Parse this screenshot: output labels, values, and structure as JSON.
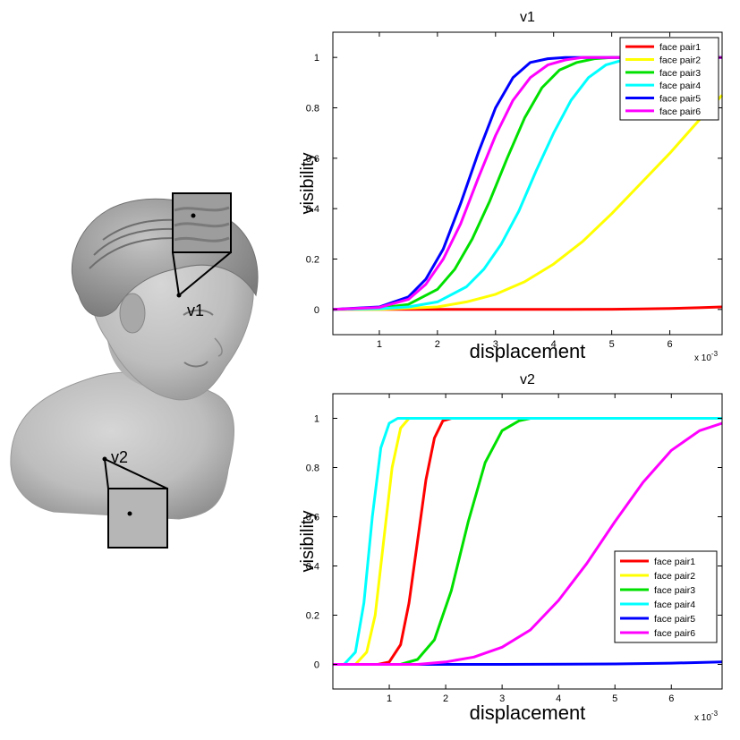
{
  "bust": {
    "label_v1": "v1",
    "label_v2": "v2",
    "surface_color": "#bcbcbc"
  },
  "colors": {
    "face pair1": "#ff0000",
    "face pair2": "#ffff00",
    "face pair3": "#00e000",
    "face pair4": "#00ffff",
    "face pair5": "#0000ff",
    "face pair6": "#ff00ff"
  },
  "chart_data": [
    {
      "type": "line",
      "title": "v1",
      "xlabel": "displacement",
      "ylabel": "visibility",
      "x_multiplier": "x 10^-3",
      "x_multiplier_base": "x 10",
      "x_multiplier_exp": "-3",
      "xlim": [
        0.2,
        6.9
      ],
      "ylim": [
        -0.1,
        1.1
      ],
      "xticks": [
        1,
        2,
        3,
        4,
        5,
        6
      ],
      "yticks": [
        0,
        0.2,
        0.4,
        0.6,
        0.8,
        1
      ],
      "legend_position": "top-right",
      "grid": false,
      "series": [
        {
          "name": "face pair1",
          "x": [
            0.2,
            1.0,
            2.0,
            3.0,
            4.0,
            5.0,
            5.5,
            6.0,
            6.5,
            6.9
          ],
          "y": [
            0,
            0,
            0,
            0,
            0,
            0.001,
            0.002,
            0.004,
            0.007,
            0.01
          ]
        },
        {
          "name": "face pair2",
          "x": [
            0.2,
            1.0,
            2.0,
            2.5,
            3.0,
            3.5,
            4.0,
            4.5,
            5.0,
            5.5,
            6.0,
            6.5,
            6.9
          ],
          "y": [
            0,
            0,
            0.01,
            0.03,
            0.06,
            0.11,
            0.18,
            0.27,
            0.38,
            0.5,
            0.62,
            0.75,
            0.85
          ]
        },
        {
          "name": "face pair3",
          "x": [
            0.2,
            1.0,
            1.5,
            2.0,
            2.3,
            2.6,
            2.9,
            3.2,
            3.5,
            3.8,
            4.1,
            4.4,
            4.7,
            5.0,
            6.9
          ],
          "y": [
            0,
            0.005,
            0.02,
            0.08,
            0.16,
            0.28,
            0.43,
            0.6,
            0.76,
            0.88,
            0.95,
            0.98,
            0.995,
            1,
            1
          ]
        },
        {
          "name": "face pair4",
          "x": [
            0.2,
            1.0,
            1.5,
            2.0,
            2.5,
            2.8,
            3.1,
            3.4,
            3.7,
            4.0,
            4.3,
            4.6,
            4.9,
            5.2,
            5.5,
            6.9
          ],
          "y": [
            0,
            0.003,
            0.01,
            0.03,
            0.09,
            0.16,
            0.26,
            0.39,
            0.55,
            0.7,
            0.83,
            0.92,
            0.97,
            0.99,
            1,
            1
          ]
        },
        {
          "name": "face pair5",
          "x": [
            0.2,
            1.0,
            1.5,
            1.8,
            2.1,
            2.4,
            2.7,
            3.0,
            3.3,
            3.6,
            3.9,
            4.2,
            4.5,
            6.9
          ],
          "y": [
            0,
            0.01,
            0.05,
            0.12,
            0.24,
            0.42,
            0.62,
            0.8,
            0.92,
            0.98,
            0.995,
            1,
            1,
            1
          ]
        },
        {
          "name": "face pair6",
          "x": [
            0.2,
            1.0,
            1.5,
            1.8,
            2.1,
            2.4,
            2.7,
            3.0,
            3.3,
            3.6,
            3.9,
            4.2,
            4.5,
            4.8,
            6.9
          ],
          "y": [
            0,
            0.008,
            0.04,
            0.1,
            0.2,
            0.34,
            0.52,
            0.69,
            0.83,
            0.92,
            0.97,
            0.99,
            1,
            1,
            1
          ]
        }
      ]
    },
    {
      "type": "line",
      "title": "v2",
      "xlabel": "displacement",
      "ylabel": "visibility",
      "x_multiplier": "x 10^-3",
      "x_multiplier_base": "x 10",
      "x_multiplier_exp": "-3",
      "xlim": [
        0.0,
        6.9
      ],
      "ylim": [
        -0.1,
        1.1
      ],
      "xticks": [
        1,
        2,
        3,
        4,
        5,
        6
      ],
      "yticks": [
        0,
        0.2,
        0.4,
        0.6,
        0.8,
        1
      ],
      "legend_position": "bottom-right",
      "grid": false,
      "series": [
        {
          "name": "face pair1",
          "x": [
            0.0,
            0.8,
            1.0,
            1.2,
            1.35,
            1.5,
            1.65,
            1.8,
            1.95,
            2.1,
            6.9
          ],
          "y": [
            0,
            0,
            0.01,
            0.08,
            0.25,
            0.5,
            0.75,
            0.92,
            0.99,
            1,
            1
          ]
        },
        {
          "name": "face pair2",
          "x": [
            0.0,
            0.4,
            0.6,
            0.75,
            0.9,
            1.05,
            1.2,
            1.35,
            1.5,
            6.9
          ],
          "y": [
            0,
            0,
            0.05,
            0.2,
            0.5,
            0.8,
            0.96,
            1,
            1,
            1
          ]
        },
        {
          "name": "face pair3",
          "x": [
            0.0,
            1.2,
            1.5,
            1.8,
            2.1,
            2.4,
            2.7,
            3.0,
            3.3,
            3.5,
            6.9
          ],
          "y": [
            0,
            0,
            0.02,
            0.1,
            0.3,
            0.58,
            0.82,
            0.95,
            0.99,
            1,
            1
          ]
        },
        {
          "name": "face pair4",
          "x": [
            0.0,
            0.2,
            0.4,
            0.55,
            0.7,
            0.85,
            1.0,
            1.15,
            1.3,
            6.9
          ],
          "y": [
            0,
            0,
            0.05,
            0.25,
            0.6,
            0.88,
            0.98,
            1,
            1,
            1
          ]
        },
        {
          "name": "face pair5",
          "x": [
            0.0,
            3.0,
            5.0,
            6.0,
            6.9
          ],
          "y": [
            0,
            0,
            0.002,
            0.005,
            0.01
          ]
        },
        {
          "name": "face pair6",
          "x": [
            0.0,
            1.5,
            2.0,
            2.5,
            3.0,
            3.5,
            4.0,
            4.5,
            5.0,
            5.5,
            6.0,
            6.5,
            6.9
          ],
          "y": [
            0,
            0,
            0.01,
            0.03,
            0.07,
            0.14,
            0.26,
            0.41,
            0.58,
            0.74,
            0.87,
            0.95,
            0.98
          ]
        }
      ]
    }
  ]
}
